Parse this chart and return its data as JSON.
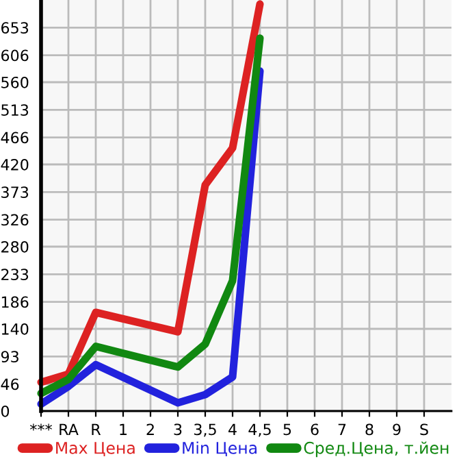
{
  "chart_data": {
    "type": "line",
    "categories": [
      "***",
      "RA",
      "R",
      "1",
      "2",
      "3",
      "3,5",
      "4",
      "4,5",
      "5",
      "6",
      "7",
      "8",
      "9",
      "S"
    ],
    "series": [
      {
        "name": "Max Цена",
        "color": "#dd2222",
        "values": [
          49,
          63,
          168,
          null,
          null,
          135,
          385,
          448,
          693,
          null,
          null,
          null,
          null,
          null,
          null
        ]
      },
      {
        "name": "Min Цена",
        "color": "#2222dd",
        "values": [
          12,
          42,
          79,
          null,
          null,
          14,
          28,
          58,
          579,
          null,
          null,
          null,
          null,
          null,
          null
        ]
      },
      {
        "name": "Сред.Цена, т.йен",
        "color": "#118811",
        "values": [
          30,
          54,
          110,
          null,
          null,
          75,
          114,
          222,
          635,
          null,
          null,
          null,
          null,
          null,
          null
        ]
      }
    ],
    "ylim": [
      0,
      700
    ],
    "yticks": [
      0,
      46,
      93,
      140,
      186,
      233,
      280,
      326,
      373,
      420,
      466,
      513,
      560,
      606,
      653
    ],
    "grid": true,
    "legend": "bottom",
    "marker": "none",
    "line_style": "solid"
  }
}
